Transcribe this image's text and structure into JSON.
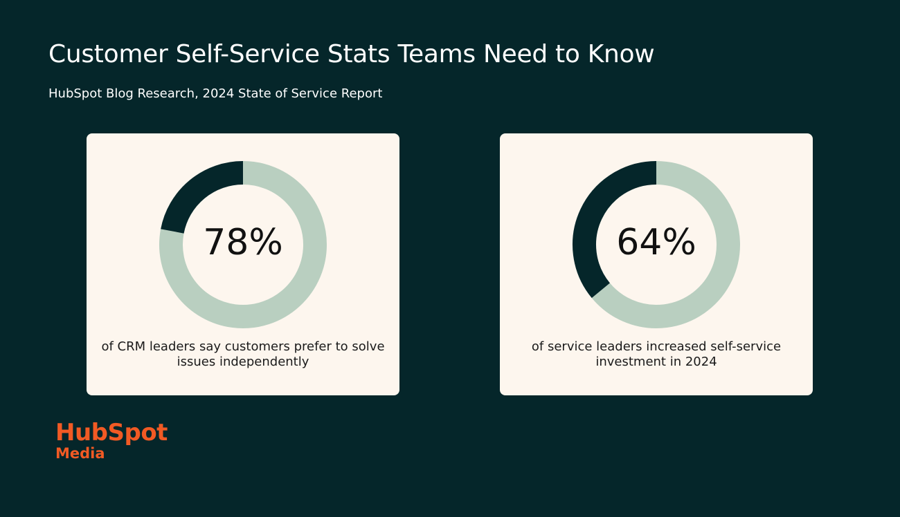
{
  "title": "Customer Self-Service Stats Teams Need to Know",
  "subtitle": "HubSpot Blog Research, 2024 State of Service Report",
  "logo": {
    "line1": "HubSpot",
    "line2": "Media"
  },
  "colors": {
    "background": "#05262a",
    "card": "#fdf6ee",
    "highlight": "#b9cfc0",
    "remainder": "#05262a",
    "logo": "#f15a24"
  },
  "chart_data": [
    {
      "type": "pie",
      "donut": true,
      "value": 78,
      "label": "78%",
      "caption": "of CRM leaders say customers prefer to solve issues independently"
    },
    {
      "type": "pie",
      "donut": true,
      "value": 64,
      "label": "64%",
      "caption": "of service leaders increased self-service investment in 2024"
    }
  ]
}
